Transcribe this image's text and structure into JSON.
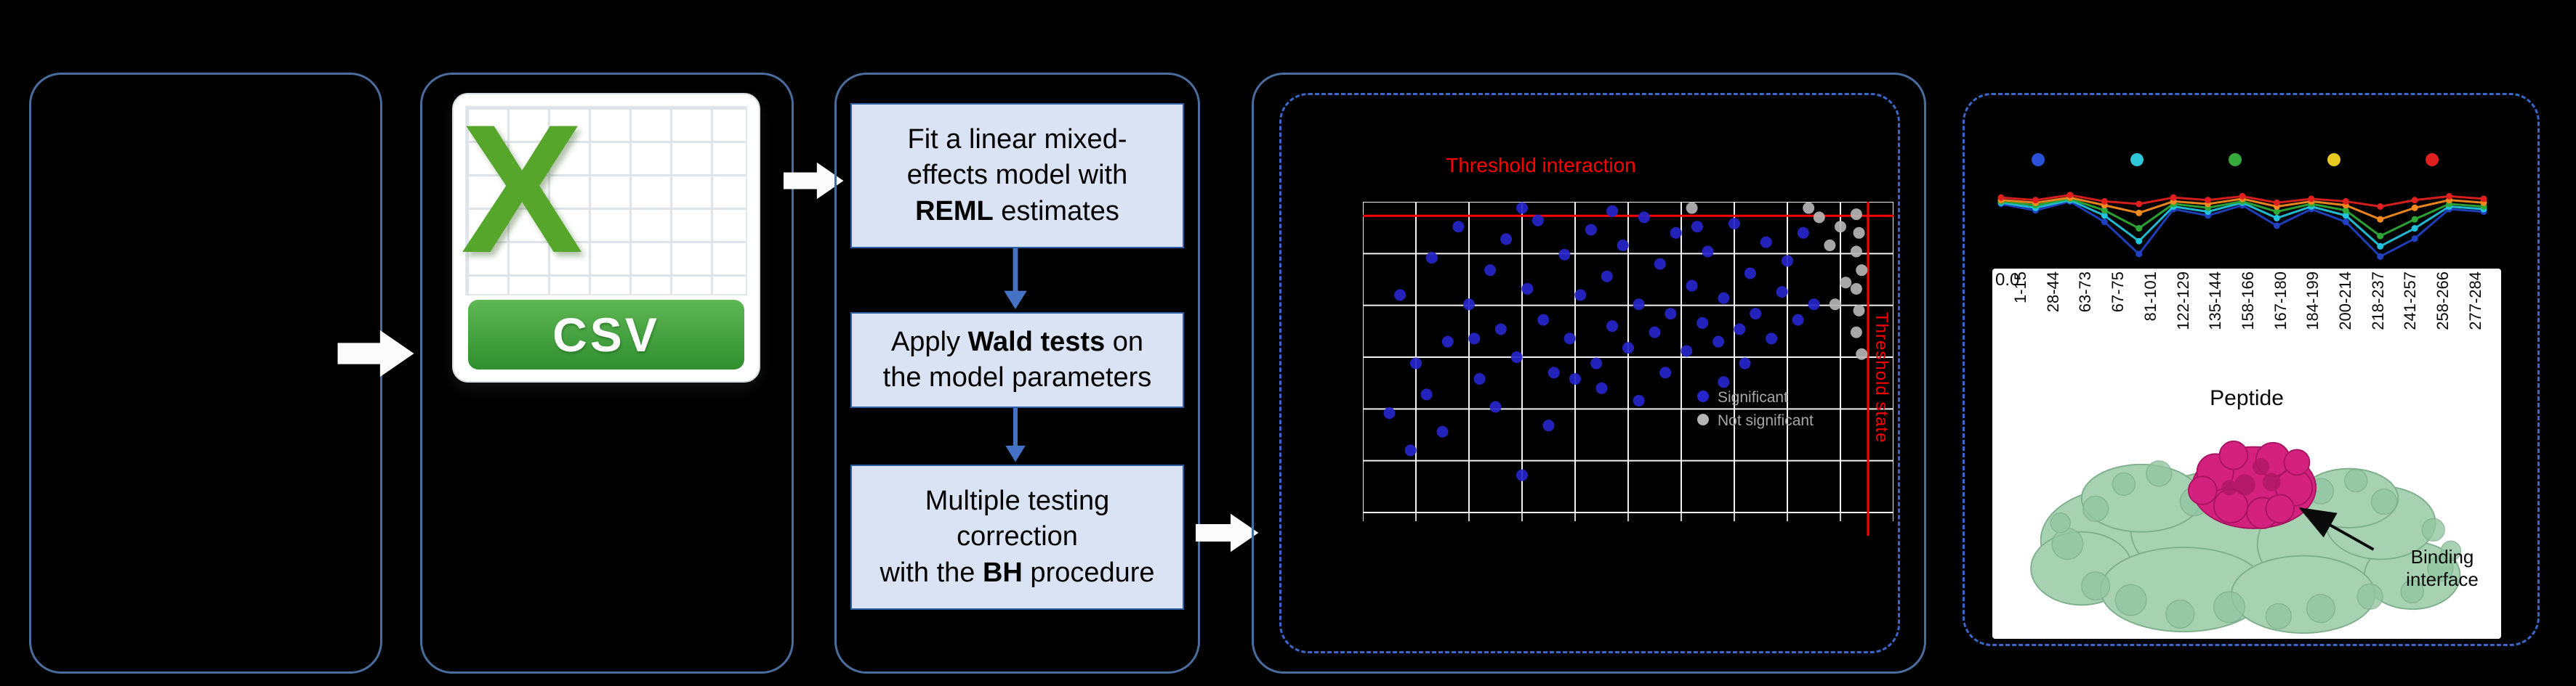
{
  "figure": {
    "background": "#000000",
    "panel_border": "#4a6d9e",
    "dashed_border": "#3a67c9"
  },
  "csv": {
    "letter": "X",
    "label": "CSV"
  },
  "steps": {
    "box1": {
      "l1": "Fit a linear mixed-",
      "l2": "effects model with",
      "l3_bold": "REML",
      "l3_rest": " estimates"
    },
    "box2": {
      "l1_pre": "Apply ",
      "l1_bold": "Wald tests",
      "l1_post": " on",
      "l2": "the model parameters"
    },
    "box3": {
      "l1": "Multiple testing",
      "l2": "correction",
      "l3_pre": "with the ",
      "l3_bold": "BH",
      "l3_post": " procedure"
    }
  },
  "results": {
    "binding_label": "Binding interface"
  },
  "chart_data": [
    {
      "id": "volcano",
      "type": "scatter",
      "hline_label": "Threshold interaction",
      "vline_label": "Threshold state",
      "hline_y_frac": 0.045,
      "vline_x_frac": 0.952,
      "threshold_color": "#ff0000",
      "grid": {
        "cols": 10,
        "rows": 6,
        "color": "#f2f2f2"
      },
      "note": "point coords are fractions of the plot area, y measured from top",
      "legend": [
        {
          "label": "Significant",
          "color": "#2626cc"
        },
        {
          "label": "Not significant",
          "color": "#b5b5b5"
        }
      ],
      "series": [
        {
          "name": "significant",
          "color": "#2626cc",
          "points_frac": [
            [
              0.07,
              0.3
            ],
            [
              0.1,
              0.52
            ],
            [
              0.13,
              0.18
            ],
            [
              0.16,
              0.45
            ],
            [
              0.18,
              0.08
            ],
            [
              0.2,
              0.33
            ],
            [
              0.22,
              0.57
            ],
            [
              0.24,
              0.22
            ],
            [
              0.26,
              0.41
            ],
            [
              0.27,
              0.12
            ],
            [
              0.29,
              0.5
            ],
            [
              0.31,
              0.28
            ],
            [
              0.33,
              0.06
            ],
            [
              0.34,
              0.38
            ],
            [
              0.36,
              0.55
            ],
            [
              0.38,
              0.17
            ],
            [
              0.39,
              0.44
            ],
            [
              0.41,
              0.3
            ],
            [
              0.43,
              0.09
            ],
            [
              0.44,
              0.52
            ],
            [
              0.46,
              0.24
            ],
            [
              0.47,
              0.4
            ],
            [
              0.49,
              0.14
            ],
            [
              0.5,
              0.47
            ],
            [
              0.52,
              0.33
            ],
            [
              0.53,
              0.05
            ],
            [
              0.55,
              0.42
            ],
            [
              0.56,
              0.2
            ],
            [
              0.58,
              0.36
            ],
            [
              0.59,
              0.1
            ],
            [
              0.61,
              0.48
            ],
            [
              0.62,
              0.27
            ],
            [
              0.64,
              0.39
            ],
            [
              0.65,
              0.16
            ],
            [
              0.67,
              0.45
            ],
            [
              0.68,
              0.31
            ],
            [
              0.7,
              0.07
            ],
            [
              0.71,
              0.41
            ],
            [
              0.73,
              0.23
            ],
            [
              0.74,
              0.36
            ],
            [
              0.76,
              0.13
            ],
            [
              0.77,
              0.44
            ],
            [
              0.79,
              0.29
            ],
            [
              0.8,
              0.19
            ],
            [
              0.82,
              0.38
            ],
            [
              0.83,
              0.1
            ],
            [
              0.85,
              0.33
            ],
            [
              0.05,
              0.68
            ],
            [
              0.09,
              0.8
            ],
            [
              0.3,
              0.88
            ],
            [
              0.12,
              0.62
            ],
            [
              0.35,
              0.72
            ],
            [
              0.52,
              0.64
            ],
            [
              0.25,
              0.66
            ],
            [
              0.68,
              0.58
            ],
            [
              0.45,
              0.6
            ],
            [
              0.15,
              0.74
            ],
            [
              0.57,
              0.55
            ],
            [
              0.4,
              0.57
            ],
            [
              0.72,
              0.52
            ],
            [
              0.3,
              0.02
            ],
            [
              0.47,
              0.03
            ],
            [
              0.21,
              0.44
            ],
            [
              0.63,
              0.08
            ]
          ]
        },
        {
          "name": "not-significant",
          "color": "#b5b5b5",
          "points_frac": [
            [
              0.93,
              0.04
            ],
            [
              0.935,
              0.1
            ],
            [
              0.93,
              0.16
            ],
            [
              0.94,
              0.22
            ],
            [
              0.93,
              0.28
            ],
            [
              0.935,
              0.35
            ],
            [
              0.93,
              0.42
            ],
            [
              0.94,
              0.49
            ],
            [
              0.9,
              0.08
            ],
            [
              0.88,
              0.14
            ],
            [
              0.86,
              0.05
            ],
            [
              0.91,
              0.26
            ],
            [
              0.89,
              0.33
            ],
            [
              0.84,
              0.02
            ],
            [
              0.62,
              0.02
            ]
          ]
        }
      ]
    },
    {
      "id": "uptake",
      "type": "line",
      "categories": [
        "1-15",
        "28-44",
        "63-73",
        "67-75",
        "81-101",
        "122-129",
        "135-144",
        "158-166",
        "167-180",
        "184-199",
        "200-214",
        "218-237",
        "241-257",
        "258-266",
        "277-284"
      ],
      "xlabel": "Peptide",
      "y_tick": "0.0",
      "ylim": [
        0,
        0.6
      ],
      "legend_colors": [
        "#2b51d8",
        "#2ec8d8",
        "#37a93c",
        "#e8c91f",
        "#e02020"
      ],
      "series": [
        {
          "name": "series-blue",
          "color": "#1f41c2",
          "values": [
            0.47,
            0.42,
            0.49,
            0.33,
            0.08,
            0.43,
            0.38,
            0.46,
            0.3,
            0.43,
            0.33,
            0.06,
            0.2,
            0.43,
            0.41
          ]
        },
        {
          "name": "series-cyan",
          "color": "#22c3dd",
          "values": [
            0.48,
            0.44,
            0.5,
            0.38,
            0.18,
            0.45,
            0.41,
            0.48,
            0.36,
            0.45,
            0.38,
            0.14,
            0.28,
            0.45,
            0.43
          ]
        },
        {
          "name": "series-green",
          "color": "#2ea836",
          "values": [
            0.49,
            0.46,
            0.51,
            0.42,
            0.28,
            0.47,
            0.44,
            0.49,
            0.41,
            0.47,
            0.42,
            0.22,
            0.35,
            0.47,
            0.45
          ]
        },
        {
          "name": "series-orange",
          "color": "#f58a1f",
          "values": [
            0.5,
            0.48,
            0.52,
            0.46,
            0.4,
            0.49,
            0.47,
            0.51,
            0.45,
            0.49,
            0.46,
            0.35,
            0.44,
            0.5,
            0.48
          ]
        },
        {
          "name": "series-red",
          "color": "#e01f1f",
          "values": [
            0.52,
            0.5,
            0.54,
            0.49,
            0.47,
            0.52,
            0.5,
            0.53,
            0.48,
            0.51,
            0.49,
            0.45,
            0.5,
            0.53,
            0.51
          ]
        }
      ]
    }
  ]
}
